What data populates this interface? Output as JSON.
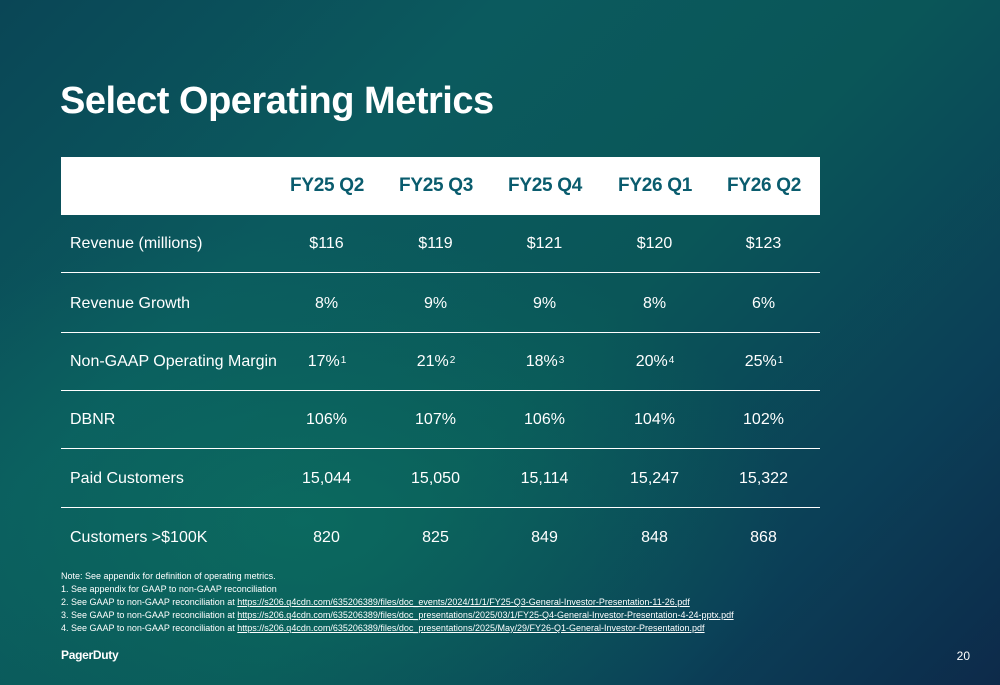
{
  "slide": {
    "title": "Select Operating Metrics",
    "page_number": "20",
    "brand": "PagerDuty"
  },
  "table": {
    "columns": [
      "FY25 Q2",
      "FY25 Q3",
      "FY25 Q4",
      "FY26 Q1",
      "FY26 Q2"
    ],
    "rows": [
      {
        "label": "Revenue (millions)",
        "cells": [
          {
            "value": "$116",
            "sup": ""
          },
          {
            "value": "$119",
            "sup": ""
          },
          {
            "value": "$121",
            "sup": ""
          },
          {
            "value": "$120",
            "sup": ""
          },
          {
            "value": "$123",
            "sup": ""
          }
        ]
      },
      {
        "label": "Revenue Growth",
        "cells": [
          {
            "value": "8%",
            "sup": ""
          },
          {
            "value": "9%",
            "sup": ""
          },
          {
            "value": "9%",
            "sup": ""
          },
          {
            "value": "8%",
            "sup": ""
          },
          {
            "value": "6%",
            "sup": ""
          }
        ]
      },
      {
        "label": "Non-GAAP Operating Margin",
        "cells": [
          {
            "value": "17%",
            "sup": "1"
          },
          {
            "value": "21%",
            "sup": "2"
          },
          {
            "value": "18%",
            "sup": "3"
          },
          {
            "value": "20%",
            "sup": "4"
          },
          {
            "value": "25%",
            "sup": "1"
          }
        ]
      },
      {
        "label": "DBNR",
        "cells": [
          {
            "value": "106%",
            "sup": ""
          },
          {
            "value": "107%",
            "sup": ""
          },
          {
            "value": "106%",
            "sup": ""
          },
          {
            "value": "104%",
            "sup": ""
          },
          {
            "value": "102%",
            "sup": ""
          }
        ]
      },
      {
        "label": "Paid Customers",
        "cells": [
          {
            "value": "15,044",
            "sup": ""
          },
          {
            "value": "15,050",
            "sup": ""
          },
          {
            "value": "15,114",
            "sup": ""
          },
          {
            "value": "15,247",
            "sup": ""
          },
          {
            "value": "15,322",
            "sup": ""
          }
        ]
      },
      {
        "label": "Customers >$100K",
        "cells": [
          {
            "value": "820",
            "sup": ""
          },
          {
            "value": "825",
            "sup": ""
          },
          {
            "value": "849",
            "sup": ""
          },
          {
            "value": "848",
            "sup": ""
          },
          {
            "value": "868",
            "sup": ""
          }
        ]
      }
    ]
  },
  "notes": {
    "note": "Note: See appendix for definition of operating metrics.",
    "footnotes": [
      {
        "text": "1. See appendix for GAAP to non-GAAP reconciliation",
        "link": ""
      },
      {
        "text": "2. See GAAP to non-GAAP reconciliation at ",
        "link": "https://s206.q4cdn.com/635206389/files/doc_events/2024/11/1/FY25-Q3-General-Investor-Presentation-11-26.pdf"
      },
      {
        "text": "3. See GAAP to non-GAAP reconciliation at ",
        "link": "https://s206.q4cdn.com/635206389/files/doc_presentations/2025/03/1/FY25-Q4-General-Investor-Presentation-4-24-pptx.pdf"
      },
      {
        "text": "4. See GAAP to non-GAAP reconciliation at ",
        "link": "https://s206.q4cdn.com/635206389/files/doc_presentations/2025/May/29/FY26-Q1-General-Investor-Presentation.pdf"
      }
    ]
  },
  "colors": {
    "header_text": "#0a5c6e",
    "background_dark": "#0d2a4a",
    "background_teal": "#0b5a5e"
  }
}
